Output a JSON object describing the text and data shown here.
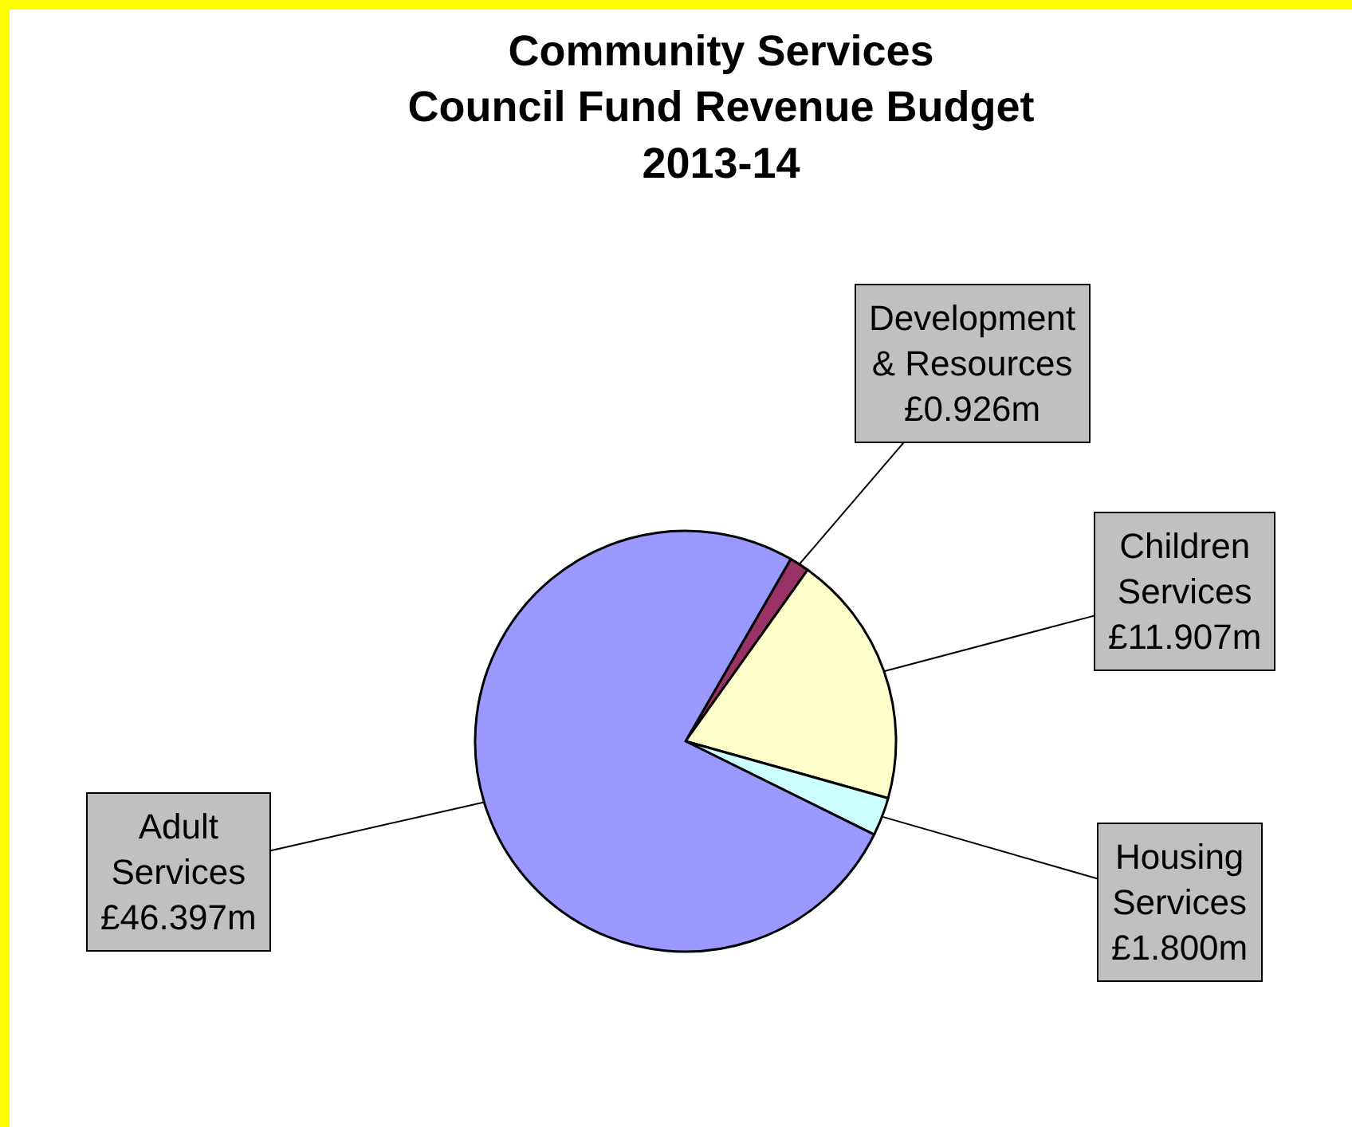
{
  "chart_data": {
    "type": "pie",
    "title": "Community Services\nCouncil Fund Revenue Budget\n2013-14",
    "categories": [
      "Development & Resources",
      "Children Services",
      "Housing Services",
      "Adult Services"
    ],
    "values": [
      0.926,
      11.907,
      1.8,
      46.397
    ],
    "value_labels": [
      "£0.926m",
      "£11.907m",
      "£1.800m",
      "£46.397m"
    ],
    "colors": [
      "#993366",
      "#ffffcc",
      "#ccffff",
      "#9999ff"
    ],
    "legend": false
  }
}
